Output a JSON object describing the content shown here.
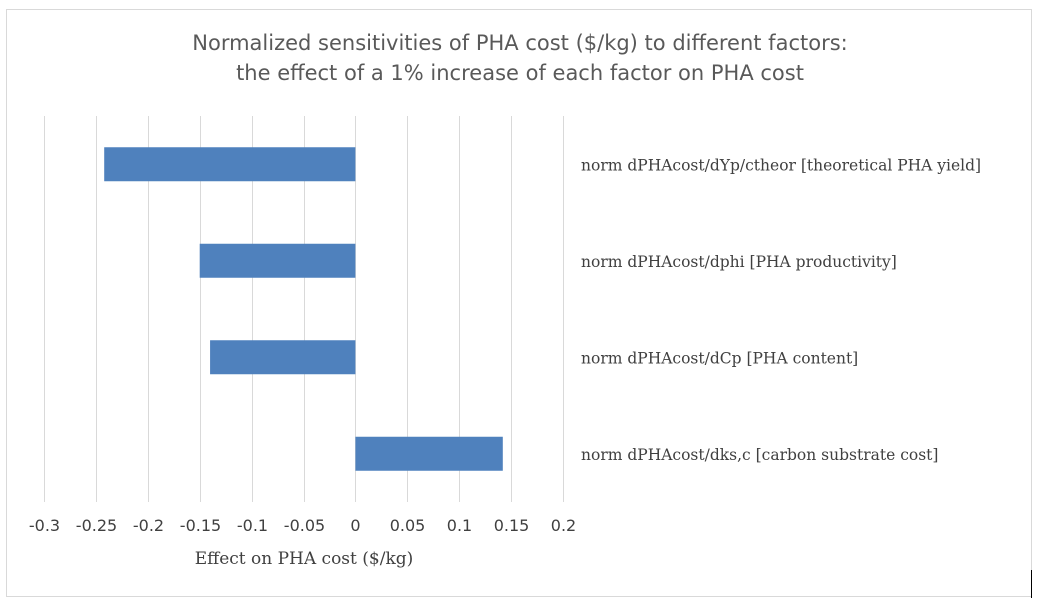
{
  "chart_data": {
    "type": "bar",
    "orientation": "horizontal",
    "title_lines": [
      "Normalized sensitivities of PHA cost ($/kg) to different factors:",
      "the effect of a 1% increase of each factor on PHA cost"
    ],
    "xlabel": "Effect on PHA cost ($/kg)",
    "ylabel": "",
    "xlim": [
      -0.3,
      0.2
    ],
    "xticks": [
      -0.3,
      -0.25,
      -0.2,
      -0.15,
      -0.1,
      -0.05,
      0,
      0.05,
      0.1,
      0.15,
      0.2
    ],
    "xtick_labels": [
      "-0.3",
      "-0.25",
      "-0.2",
      "-0.15",
      "-0.1",
      "-0.05",
      "0",
      "0.05",
      "0.1",
      "0.15",
      "0.2"
    ],
    "grid": "vertical",
    "categories": [
      "norm dPHAcost/dYp/ctheor [theoretical PHA yield]",
      "norm dPHAcost/dphi [PHA productivity]",
      "norm dPHAcost/dCp [PHA content]",
      "norm dPHAcost/dks,c [carbon substrate cost]"
    ],
    "values": [
      -0.242,
      -0.15,
      -0.14,
      0.142
    ],
    "bar_color": "#4f81bd",
    "legend": "none"
  }
}
